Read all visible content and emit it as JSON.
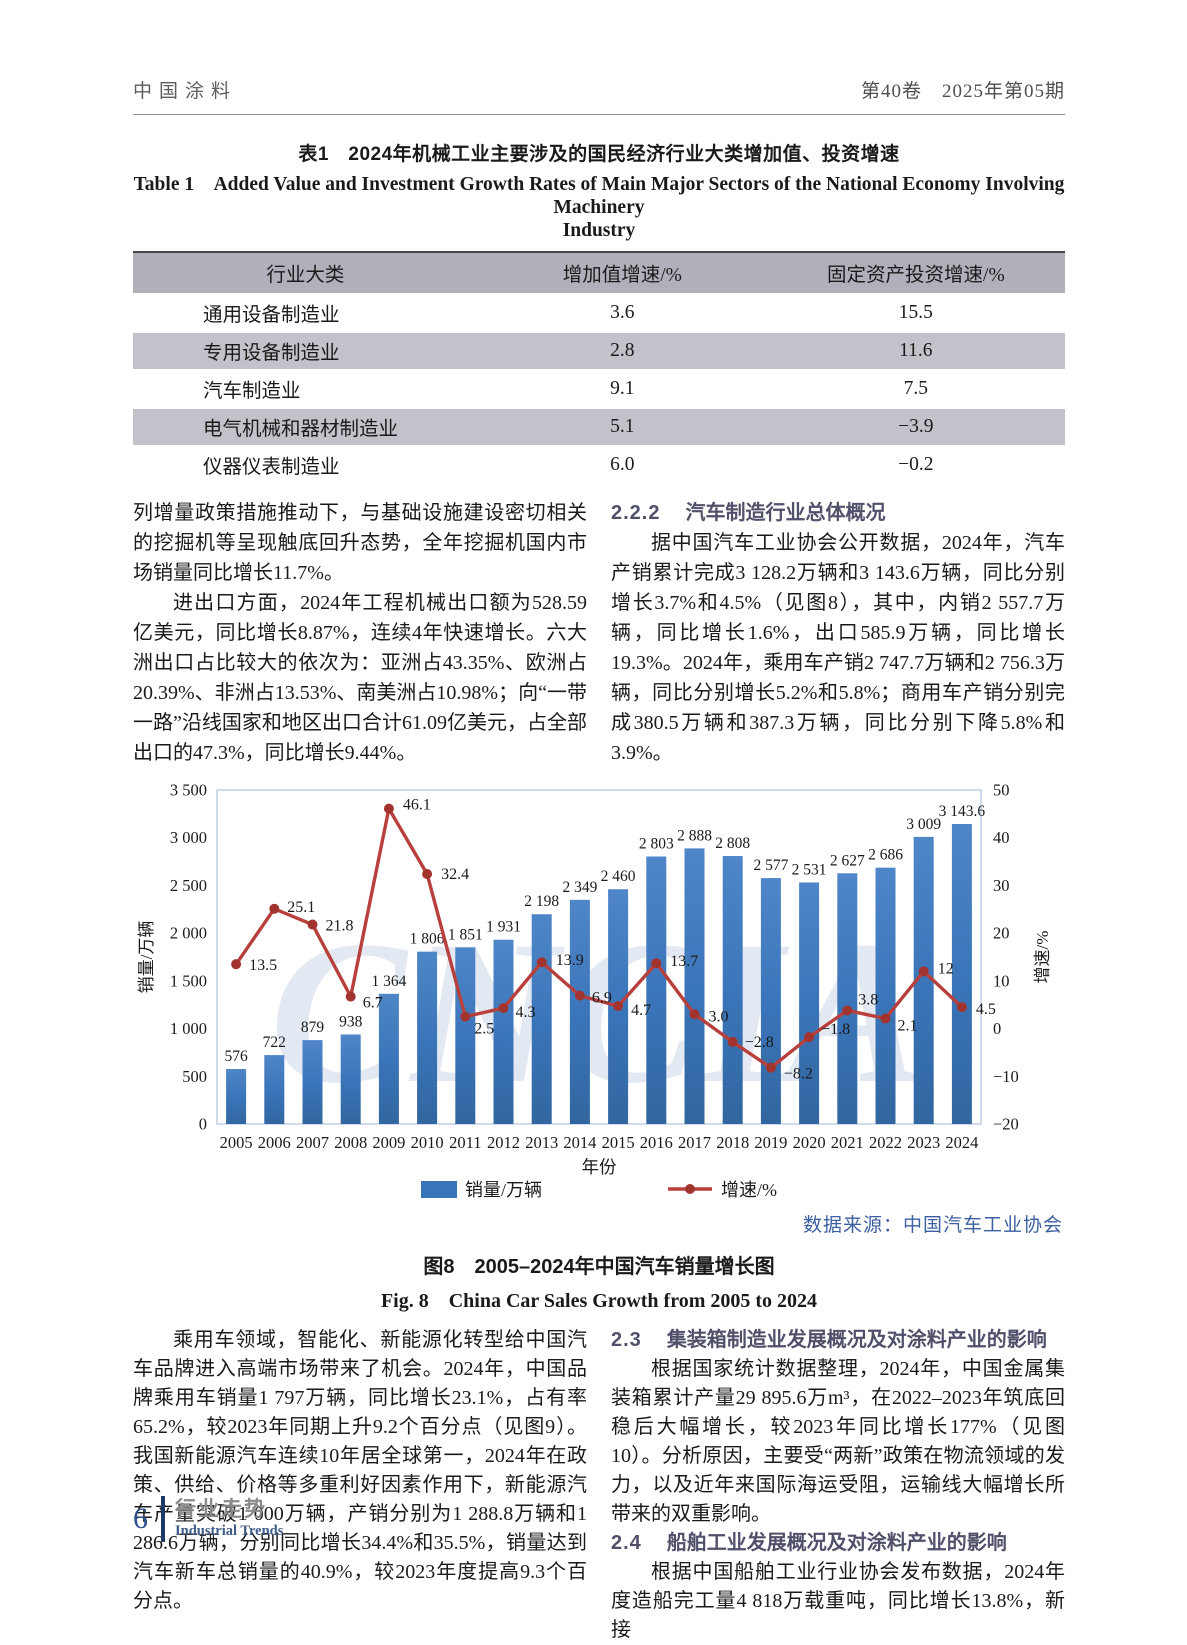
{
  "header": {
    "journal": "中国涂料",
    "issue": "第40卷　2025年第05期"
  },
  "table1": {
    "title_cn": "表1　2024年机械工业主要涉及的国民经济行业大类增加值、投资增速",
    "title_en1": "Table 1　Added Value and Investment Growth Rates of Main Major Sectors of the National Economy Involving Machinery",
    "title_en2": "Industry",
    "columns": [
      "行业大类",
      "增加值增速/%",
      "固定资产投资增速/%"
    ],
    "rows": [
      [
        "通用设备制造业",
        "3.6",
        "15.5"
      ],
      [
        "专用设备制造业",
        "2.8",
        "11.6"
      ],
      [
        "汽车制造业",
        "9.1",
        "7.5"
      ],
      [
        "电气机械和器材制造业",
        "5.1",
        "−3.9"
      ],
      [
        "仪器仪表制造业",
        "6.0",
        "−0.2"
      ]
    ]
  },
  "left_column": {
    "para1": "列增量政策措施推动下，与基础设施建设密切相关的挖掘机等呈现触底回升态势，全年挖掘机国内市场销量同比增长11.7%。",
    "para2": "进出口方面，2024年工程机械出口额为528.59亿美元，同比增长8.87%，连续4年快速增长。六大洲出口占比较大的依次为：亚洲占43.35%、欧洲占20.39%、非洲占13.53%、南美洲占10.98%；向“一带一路”沿线国家和地区出口合计61.09亿美元，占全部出口的47.3%，同比增长9.44%。"
  },
  "right_column": {
    "heading_num": "2.2.2",
    "heading": "汽车制造行业总体概况",
    "para": "据中国汽车工业协会公开数据，2024年，汽车产销累计完成3 128.2万辆和3 143.6万辆，同比分别增长3.7%和4.5%（见图8），其中，内销2 557.7万辆，同比增长1.6%，出口585.9万辆，同比增长19.3%。2024年，乘用车产销2 747.7万辆和2 756.3万辆，同比分别增长5.2%和5.8%；商用车产销分别完成380.5万辆和387.3万辆，同比分别下降5.8%和3.9%。"
  },
  "figure": {
    "source_note": "数据来源：中国汽车工业协会",
    "caption_cn": "图8　2005–2024年中国汽车销量增长图",
    "caption_en": "Fig. 8　China Car Sales Growth from 2005 to 2024"
  },
  "bottom_left": {
    "para": "乘用车领域，智能化、新能源化转型给中国汽车品牌进入高端市场带来了机会。2024年，中国品牌乘用车销量1 797万辆，同比增长23.1%，占有率65.2%，较2023年同期上升9.2个百分点（见图9）。我国新能源汽车连续10年居全球第一，2024年在政策、供给、价格等多重利好因素作用下，新能源汽车产量突破1 000万辆，产销分别为1 288.8万辆和1 286.6万辆，分别同比增长34.4%和35.5%，销量达到汽车新车总销量的40.9%，较2023年度提高9.3个百分点。"
  },
  "bottom_right": {
    "h23_num": "2.3",
    "h23": "集装箱制造业发展概况及对涂料产业的影响",
    "para23": "根据国家统计数据整理，2024年，中国金属集装箱累计产量29 895.6万m³，在2022–2023年筑底回稳后大幅增长，较2023年同比增长177%（见图10）。分析原因，主要受“两新”政策在物流领域的发力，以及近年来国际海运受阻，运输线大幅增长所带来的双重影响。",
    "h24_num": "2.4",
    "h24": "船舶工业发展概况及对涂料产业的影响",
    "para24": "根据中国船舶工业行业协会发布数据，2024年度造船完工量4 818万载重吨，同比增长13.8%，新接"
  },
  "footer": {
    "page_number": "6",
    "section_cn": "行业走势",
    "section_en": "Industrial Trends"
  },
  "chart_data": {
    "type": "bar+line",
    "title": "图8 2005–2024年中国汽车销量增长图",
    "categories": [
      "2005",
      "2006",
      "2007",
      "2008",
      "2009",
      "2010",
      "2011",
      "2012",
      "2013",
      "2014",
      "2015",
      "2016",
      "2017",
      "2018",
      "2019",
      "2020",
      "2021",
      "2022",
      "2023",
      "2024"
    ],
    "series": [
      {
        "name": "销量/万辆",
        "type": "bar",
        "axis": "left",
        "values": [
          576,
          722,
          879,
          938,
          1364,
          1806,
          1851,
          1931,
          2198,
          2349,
          2460,
          2803,
          2888,
          2808,
          2577,
          2531,
          2627,
          2686,
          3009,
          3143.6
        ],
        "labels": [
          "576",
          "722",
          "879",
          "938",
          "1 364",
          "1 806",
          "1 851",
          "1 931",
          "2 198",
          "2 349",
          "2 460",
          "2 803",
          "2 888",
          "2 808",
          "2 577",
          "2 531",
          "2 627",
          "2 686",
          "3 009",
          "3 143.6"
        ]
      },
      {
        "name": "增速/%",
        "type": "line",
        "axis": "right",
        "values": [
          13.5,
          25.1,
          21.8,
          6.7,
          46.1,
          32.4,
          2.5,
          4.3,
          13.9,
          6.9,
          4.7,
          13.7,
          3.0,
          -2.8,
          -8.2,
          -1.8,
          3.8,
          2.1,
          12,
          4.5
        ],
        "labels": [
          "13.5",
          "25.1",
          "21.8",
          "6.7",
          "46.1",
          "32.4",
          "2.5",
          "4.3",
          "13.9",
          "6.9",
          "4.7",
          "13.7",
          "3.0",
          "−2.8",
          "−8.2",
          "−1.8",
          "3.8",
          "2.1",
          "12",
          "4.5"
        ]
      }
    ],
    "left_axis": {
      "label": "销量/万辆",
      "min": 0,
      "max": 3500,
      "ticks": [
        "3 500",
        "3 000",
        "2 500",
        "2 000",
        "1 500",
        "1 000",
        "500",
        "0"
      ]
    },
    "right_axis": {
      "label": "增速/%",
      "min": -20,
      "max": 50,
      "ticks": [
        "50",
        "40",
        "30",
        "20",
        "10",
        "0",
        "−10",
        "−20"
      ]
    },
    "xlabel": "年份",
    "legend": [
      "销量/万辆",
      "增速/%"
    ],
    "legend_position": "bottom",
    "grid": false,
    "watermark": "CNCIA",
    "colors": {
      "bar": "#3A74B8",
      "line": "#B8403C"
    }
  }
}
